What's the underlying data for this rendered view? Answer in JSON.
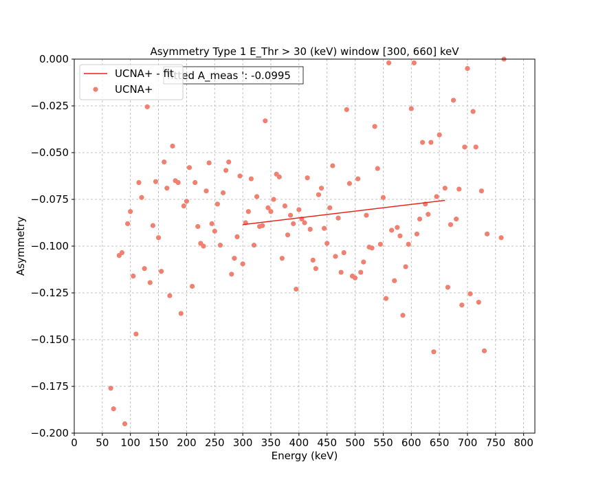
{
  "chart_data": {
    "type": "scatter",
    "title": "Asymmetry Type 1 E_Thr > 30 (keV) window [300, 660] keV",
    "xlabel": "Energy (keV)",
    "ylabel": "Asymmetry",
    "xlim": [
      0,
      820
    ],
    "ylim": [
      -0.2,
      0.0
    ],
    "xticks": [
      0,
      50,
      100,
      150,
      200,
      250,
      300,
      350,
      400,
      450,
      500,
      550,
      600,
      650,
      700,
      750,
      800
    ],
    "yticks": [
      -0.2,
      -0.175,
      -0.15,
      -0.125,
      -0.1,
      -0.075,
      -0.05,
      -0.025,
      0.0
    ],
    "xtick_labels": [
      "0",
      "50",
      "100",
      "150",
      "200",
      "250",
      "300",
      "350",
      "400",
      "450",
      "500",
      "550",
      "600",
      "650",
      "700",
      "750",
      "800"
    ],
    "ytick_labels": [
      "−0.200",
      "−0.175",
      "−0.150",
      "−0.125",
      "−0.100",
      "−0.075",
      "−0.050",
      "−0.025",
      "0.000"
    ],
    "grid": true,
    "legend_position": "top-left",
    "colors": {
      "scatter": "#f08070",
      "fit_line": "#e8241a"
    },
    "annotation": "fitted A_meas ': -0.0995",
    "series": [
      {
        "name": "UCNA+ - fit",
        "kind": "line",
        "x": [
          300,
          660
        ],
        "y": [
          -0.0885,
          -0.0755
        ]
      },
      {
        "name": "UCNA+",
        "kind": "scatter",
        "x": [
          65,
          70,
          80,
          85,
          90,
          95,
          100,
          105,
          110,
          115,
          120,
          125,
          130,
          135,
          140,
          145,
          150,
          155,
          160,
          165,
          170,
          175,
          180,
          185,
          190,
          195,
          200,
          205,
          210,
          215,
          220,
          225,
          230,
          235,
          240,
          245,
          250,
          255,
          260,
          265,
          270,
          275,
          280,
          285,
          290,
          295,
          300,
          305,
          310,
          315,
          320,
          325,
          330,
          335,
          340,
          345,
          350,
          355,
          360,
          365,
          370,
          375,
          380,
          385,
          390,
          395,
          400,
          405,
          410,
          415,
          420,
          425,
          430,
          435,
          440,
          445,
          450,
          455,
          460,
          465,
          470,
          475,
          480,
          485,
          490,
          495,
          500,
          505,
          510,
          515,
          520,
          525,
          530,
          535,
          540,
          545,
          550,
          555,
          560,
          565,
          570,
          575,
          580,
          585,
          590,
          595,
          600,
          605,
          610,
          615,
          620,
          625,
          630,
          635,
          640,
          645,
          650,
          660,
          665,
          670,
          675,
          680,
          685,
          690,
          695,
          700,
          705,
          710,
          715,
          720,
          725,
          730,
          735,
          760,
          765
        ],
        "y": [
          -0.176,
          -0.187,
          -0.105,
          -0.1035,
          -0.195,
          -0.088,
          -0.0815,
          -0.116,
          -0.147,
          -0.066,
          -0.074,
          -0.112,
          -0.0255,
          -0.1195,
          -0.089,
          -0.0655,
          -0.0955,
          -0.1135,
          -0.055,
          -0.069,
          -0.1265,
          -0.0465,
          -0.065,
          -0.066,
          -0.136,
          -0.0785,
          -0.076,
          -0.058,
          -0.1215,
          -0.066,
          -0.0895,
          -0.0985,
          -0.1,
          -0.0705,
          -0.0555,
          -0.088,
          -0.092,
          -0.0775,
          -0.0995,
          -0.0715,
          -0.0595,
          -0.055,
          -0.115,
          -0.1065,
          -0.095,
          -0.0625,
          -0.1095,
          -0.0875,
          -0.0815,
          -0.064,
          -0.0995,
          -0.0735,
          -0.0895,
          -0.089,
          -0.033,
          -0.0795,
          -0.0815,
          -0.075,
          -0.0615,
          -0.063,
          -0.1065,
          -0.0785,
          -0.094,
          -0.0835,
          -0.088,
          -0.123,
          -0.0805,
          -0.0855,
          -0.0875,
          -0.0635,
          -0.091,
          -0.1075,
          -0.112,
          -0.0725,
          -0.069,
          -0.0905,
          -0.0985,
          -0.0795,
          -0.057,
          -0.1055,
          -0.085,
          -0.114,
          -0.1035,
          -0.027,
          -0.0665,
          -0.116,
          -0.117,
          -0.064,
          -0.114,
          -0.1085,
          -0.0835,
          -0.1005,
          -0.101,
          -0.036,
          -0.0585,
          -0.099,
          -0.074,
          -0.128,
          -0.002,
          -0.0915,
          -0.1185,
          -0.09,
          -0.0945,
          -0.137,
          -0.111,
          -0.099,
          -0.0265,
          -0.002,
          -0.0935,
          -0.0855,
          -0.0445,
          -0.0775,
          -0.083,
          -0.0445,
          -0.1565,
          -0.0735,
          -0.0405,
          -0.069,
          -0.122,
          -0.0885,
          -0.022,
          -0.0855,
          -0.0695,
          -0.1315,
          -0.047,
          -0.005,
          -0.1255,
          -0.028,
          -0.047,
          -0.13,
          -0.0705,
          -0.156,
          -0.0935,
          -0.0955,
          0.0
        ]
      }
    ]
  }
}
